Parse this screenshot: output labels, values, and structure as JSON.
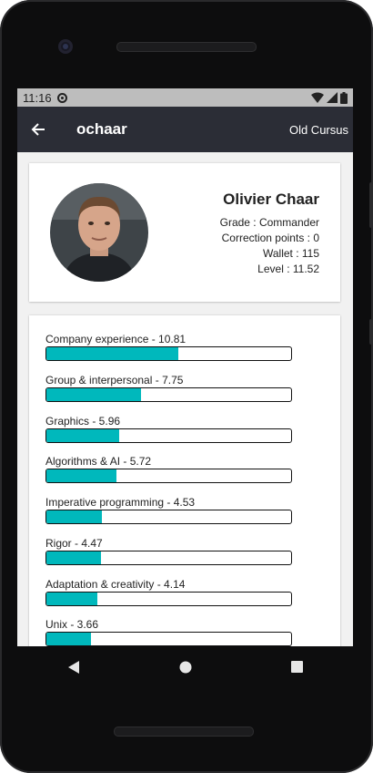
{
  "status": {
    "time": "11:16"
  },
  "appbar": {
    "title": "ochaar",
    "action": "Old Cursus"
  },
  "profile": {
    "name": "Olivier Chaar",
    "grade": "Grade : Commander",
    "correction": "Correction points : 0",
    "wallet": "Wallet : 115",
    "level": "Level : 11.52"
  },
  "accent_color": "#00b8bc",
  "skills_max": 20,
  "skills": [
    {
      "label": "Company experience - 10.81",
      "value": 10.81
    },
    {
      "label": "Group & interpersonal - 7.75",
      "value": 7.75
    },
    {
      "label": "Graphics - 5.96",
      "value": 5.96
    },
    {
      "label": "Algorithms & AI - 5.72",
      "value": 5.72
    },
    {
      "label": "Imperative programming - 4.53",
      "value": 4.53
    },
    {
      "label": "Rigor - 4.47",
      "value": 4.47
    },
    {
      "label": "Adaptation & creativity - 4.14",
      "value": 4.14
    },
    {
      "label": "Unix - 3.66",
      "value": 3.66
    }
  ],
  "icons": {
    "back": "arrow-left-icon",
    "nav_back": "triangle-back-icon",
    "nav_home": "circle-home-icon",
    "nav_recent": "square-recents-icon"
  }
}
